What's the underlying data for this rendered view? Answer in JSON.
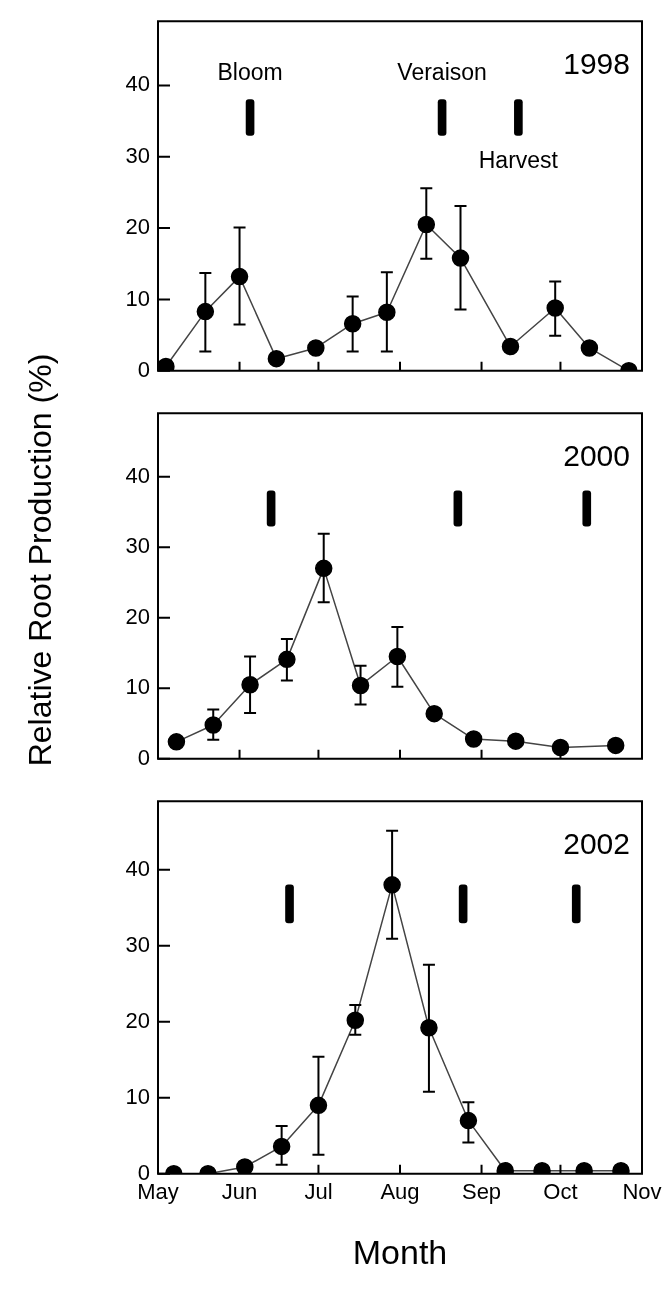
{
  "chart_data": [
    {
      "type": "line",
      "title": "1998",
      "xlim": [
        "--05-01",
        "--11-01"
      ],
      "xticks": [
        {
          "value": "--05-01",
          "label": null
        },
        {
          "value": "--06-01",
          "label": null
        },
        {
          "value": "--07-01",
          "label": null
        },
        {
          "value": "--08-01",
          "label": null
        },
        {
          "value": "--09-01",
          "label": null
        },
        {
          "value": "--10-01",
          "label": null
        },
        {
          "value": "--11-01",
          "label": null
        }
      ],
      "ylim": [
        0,
        49
      ],
      "yticks": [
        0,
        10,
        20,
        30,
        40
      ],
      "tick_labels": "y",
      "marker": "circle",
      "series": [
        {
          "color": "#000000",
          "x": [
            "--05-04",
            "--05-19",
            "--06-01",
            "--06-15",
            "--06-30",
            "--07-14",
            "--07-27",
            "--08-11",
            "--08-24",
            "--09-12",
            "--09-29",
            "--10-12",
            "--10-27"
          ],
          "values": [
            0.6,
            8.3,
            13.2,
            1.7,
            3.2,
            6.6,
            8.2,
            20.5,
            15.8,
            3.4,
            8.8,
            3.2,
            0
          ],
          "errors": [
            null,
            [
              2.7,
              13.7
            ],
            [
              6.5,
              20.1
            ],
            null,
            null,
            [
              2.7,
              10.4
            ],
            [
              2.7,
              13.8
            ],
            [
              15.7,
              25.6
            ],
            [
              8.6,
              23.1
            ],
            null,
            [
              4.9,
              12.5
            ],
            null,
            null
          ]
        },
        {
          "type": "bar",
          "color": "#000000",
          "x": [
            "--06-05",
            "--08-17",
            "--09-15"
          ],
          "base": [
            33,
            33,
            33
          ],
          "values": [
            5,
            5,
            5
          ]
        }
      ],
      "annotations": [
        "Bloom",
        "Veraison",
        "Harvest"
      ]
    },
    {
      "type": "line",
      "title": "2000",
      "ylabel": "Relative Root Production (%)",
      "xlim": [
        "--05-01",
        "--11-01"
      ],
      "xticks": [
        {
          "value": "--05-01",
          "label": null
        },
        {
          "value": "--06-01",
          "label": null
        },
        {
          "value": "--07-01",
          "label": null
        },
        {
          "value": "--08-01",
          "label": null
        },
        {
          "value": "--09-01",
          "label": null
        },
        {
          "value": "--10-01",
          "label": null
        },
        {
          "value": "--11-01",
          "label": null
        }
      ],
      "ylim": [
        0,
        49
      ],
      "yticks": [
        0,
        10,
        20,
        30,
        40
      ],
      "tick_labels": "y",
      "marker": "circle",
      "series": [
        {
          "color": "#000000",
          "x": [
            "--05-08",
            "--05-22",
            "--06-05",
            "--06-19",
            "--07-03",
            "--07-17",
            "--07-31",
            "--08-14",
            "--08-29",
            "--09-14",
            "--10-01",
            "--10-22"
          ],
          "values": [
            2.4,
            4.8,
            10.5,
            14.1,
            27.0,
            10.4,
            14.5,
            6.4,
            2.8,
            2.5,
            1.6,
            1.9
          ],
          "errors": [
            null,
            [
              2.7,
              7.0
            ],
            [
              6.5,
              14.5
            ],
            [
              11.1,
              17.0
            ],
            [
              22.2,
              31.9
            ],
            [
              7.7,
              13.2
            ],
            [
              10.2,
              18.7
            ],
            null,
            null,
            null,
            null,
            null
          ]
        },
        {
          "type": "bar",
          "color": "#000000",
          "x": [
            "--06-13",
            "--08-23",
            "--10-11"
          ],
          "base": [
            33,
            33,
            33
          ],
          "values": [
            5,
            5,
            5
          ]
        }
      ]
    },
    {
      "type": "line",
      "title": "2002",
      "xlabel": "Month",
      "xlim": [
        "--05-01",
        "--11-01"
      ],
      "xticks": [
        {
          "value": "--05-01",
          "label": "May"
        },
        {
          "value": "--06-01",
          "label": "Jun"
        },
        {
          "value": "--07-01",
          "label": "Jul"
        },
        {
          "value": "--08-01",
          "label": "Aug"
        },
        {
          "value": "--09-01",
          "label": "Sep"
        },
        {
          "value": "--10-01",
          "label": "Oct"
        },
        {
          "value": "--11-01",
          "label": "Nov"
        }
      ],
      "ylim": [
        0,
        49
      ],
      "yticks": [
        0,
        10,
        20,
        30,
        40
      ],
      "marker": "circle",
      "series": [
        {
          "color": "#000000",
          "x": [
            "--05-07",
            "--05-20",
            "--06-03",
            "--06-17",
            "--07-01",
            "--07-15",
            "--07-29",
            "--08-12",
            "--08-27",
            "--09-10",
            "--09-24",
            "--10-10",
            "--10-24"
          ],
          "values": [
            0,
            0,
            0.9,
            3.6,
            9.0,
            20.2,
            38.0,
            19.2,
            7.0,
            0.4,
            0.4,
            0.4,
            0.4
          ],
          "errors": [
            null,
            null,
            null,
            [
              1.2,
              6.3
            ],
            [
              2.5,
              15.4
            ],
            [
              18.3,
              22.2
            ],
            [
              30.9,
              45.1
            ],
            [
              10.8,
              27.5
            ],
            [
              4.1,
              9.4
            ],
            null,
            null,
            null,
            null
          ]
        },
        {
          "type": "bar",
          "color": "#000000",
          "x": [
            "--06-20",
            "--08-25",
            "--10-07"
          ],
          "base": [
            33,
            33,
            33
          ],
          "values": [
            5,
            5,
            5
          ]
        }
      ]
    }
  ]
}
